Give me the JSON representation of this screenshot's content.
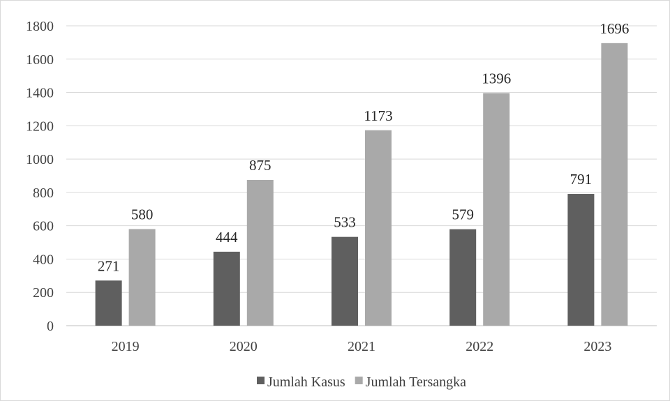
{
  "chart_data": {
    "type": "bar",
    "categories": [
      "2019",
      "2020",
      "2021",
      "2022",
      "2023"
    ],
    "series": [
      {
        "name": "Jumlah Kasus",
        "values": [
          271,
          444,
          533,
          579,
          791
        ],
        "color": "#5f5f5f"
      },
      {
        "name": "Jumlah Tersangka",
        "values": [
          580,
          875,
          1173,
          1396,
          1696
        ],
        "color": "#a9a9a9"
      }
    ],
    "ylim": [
      0,
      1800
    ],
    "yticks": [
      0,
      200,
      400,
      600,
      800,
      1000,
      1200,
      1400,
      1600,
      1800
    ],
    "grid": true,
    "legend_position": "bottom",
    "data_labels": true,
    "title": "",
    "xlabel": "",
    "ylabel": ""
  }
}
